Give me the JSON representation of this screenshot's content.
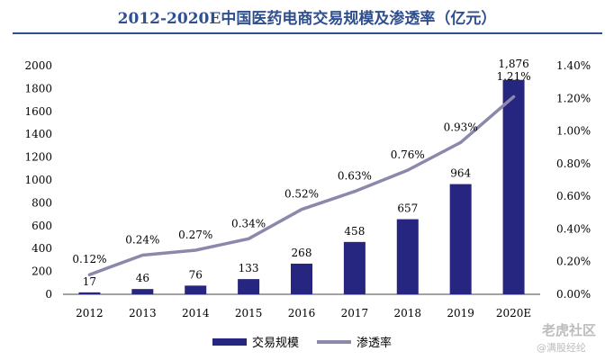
{
  "title": "2012-2020E中国医药电商交易规模及渗透率（亿元）",
  "watermark": {
    "line1": "老虎社区",
    "line2": "@满股经纶"
  },
  "colors": {
    "bar": "#262680",
    "line": "#8a89ab",
    "title": "#2f4f8f"
  },
  "chart_data": {
    "type": "bar+line",
    "categories": [
      "2012",
      "2013",
      "2014",
      "2015",
      "2016",
      "2017",
      "2018",
      "2019",
      "2020E"
    ],
    "series": [
      {
        "name": "交易规模",
        "type": "bar",
        "axis": "left",
        "values": [
          17,
          46,
          76,
          133,
          268,
          458,
          657,
          964,
          1876
        ],
        "labels": [
          "17",
          "46",
          "76",
          "133",
          "268",
          "458",
          "657",
          "964",
          "1,876"
        ]
      },
      {
        "name": "渗透率",
        "type": "line",
        "axis": "right",
        "values": [
          0.12,
          0.24,
          0.27,
          0.34,
          0.52,
          0.63,
          0.76,
          0.93,
          1.21
        ],
        "labels": [
          "0.12%",
          "0.24%",
          "0.27%",
          "0.34%",
          "0.52%",
          "0.63%",
          "0.76%",
          "0.93%",
          "1.21%"
        ]
      }
    ],
    "y_left": {
      "min": 0,
      "max": 2000,
      "ticks": [
        "0",
        "200",
        "400",
        "600",
        "800",
        "1000",
        "1200",
        "1400",
        "1600",
        "1800",
        "2000"
      ]
    },
    "y_right": {
      "min": 0,
      "max": 1.4,
      "ticks": [
        "0.00%",
        "0.20%",
        "0.40%",
        "0.60%",
        "0.80%",
        "1.00%",
        "1.20%",
        "1.40%"
      ]
    },
    "legend_position": "bottom",
    "grid": false
  }
}
